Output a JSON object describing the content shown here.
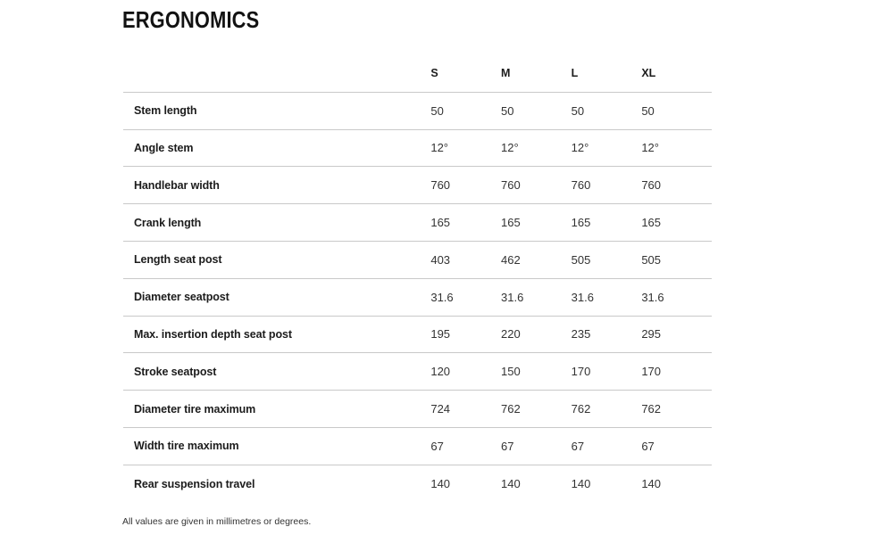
{
  "page": {
    "title": "ERGONOMICS",
    "footnote": "All values are given in millimetres or degrees."
  },
  "table": {
    "columns": [
      "S",
      "M",
      "L",
      "XL"
    ],
    "rows": [
      {
        "label": "Stem length",
        "values": [
          "50",
          "50",
          "50",
          "50"
        ]
      },
      {
        "label": "Angle stem",
        "values": [
          "12°",
          "12°",
          "12°",
          "12°"
        ]
      },
      {
        "label": "Handlebar width",
        "values": [
          "760",
          "760",
          "760",
          "760"
        ]
      },
      {
        "label": "Crank length",
        "values": [
          "165",
          "165",
          "165",
          "165"
        ]
      },
      {
        "label": "Length seat post",
        "values": [
          "403",
          "462",
          "505",
          "505"
        ]
      },
      {
        "label": "Diameter seatpost",
        "values": [
          "31.6",
          "31.6",
          "31.6",
          "31.6"
        ]
      },
      {
        "label": "Max. insertion depth seat post",
        "values": [
          "195",
          "220",
          "235",
          "295"
        ]
      },
      {
        "label": "Stroke seatpost",
        "values": [
          "120",
          "150",
          "170",
          "170"
        ]
      },
      {
        "label": "Diameter tire maximum",
        "values": [
          "724",
          "762",
          "762",
          "762"
        ]
      },
      {
        "label": "Width tire maximum",
        "values": [
          "67",
          "67",
          "67",
          "67"
        ]
      },
      {
        "label": "Rear suspension travel",
        "values": [
          "140",
          "140",
          "140",
          "140"
        ]
      }
    ]
  },
  "colors": {
    "divider": "#c9c9c9",
    "heading_text": "#121212",
    "label_text": "#1c1c1c",
    "value_text": "#333333",
    "background": "#ffffff"
  }
}
